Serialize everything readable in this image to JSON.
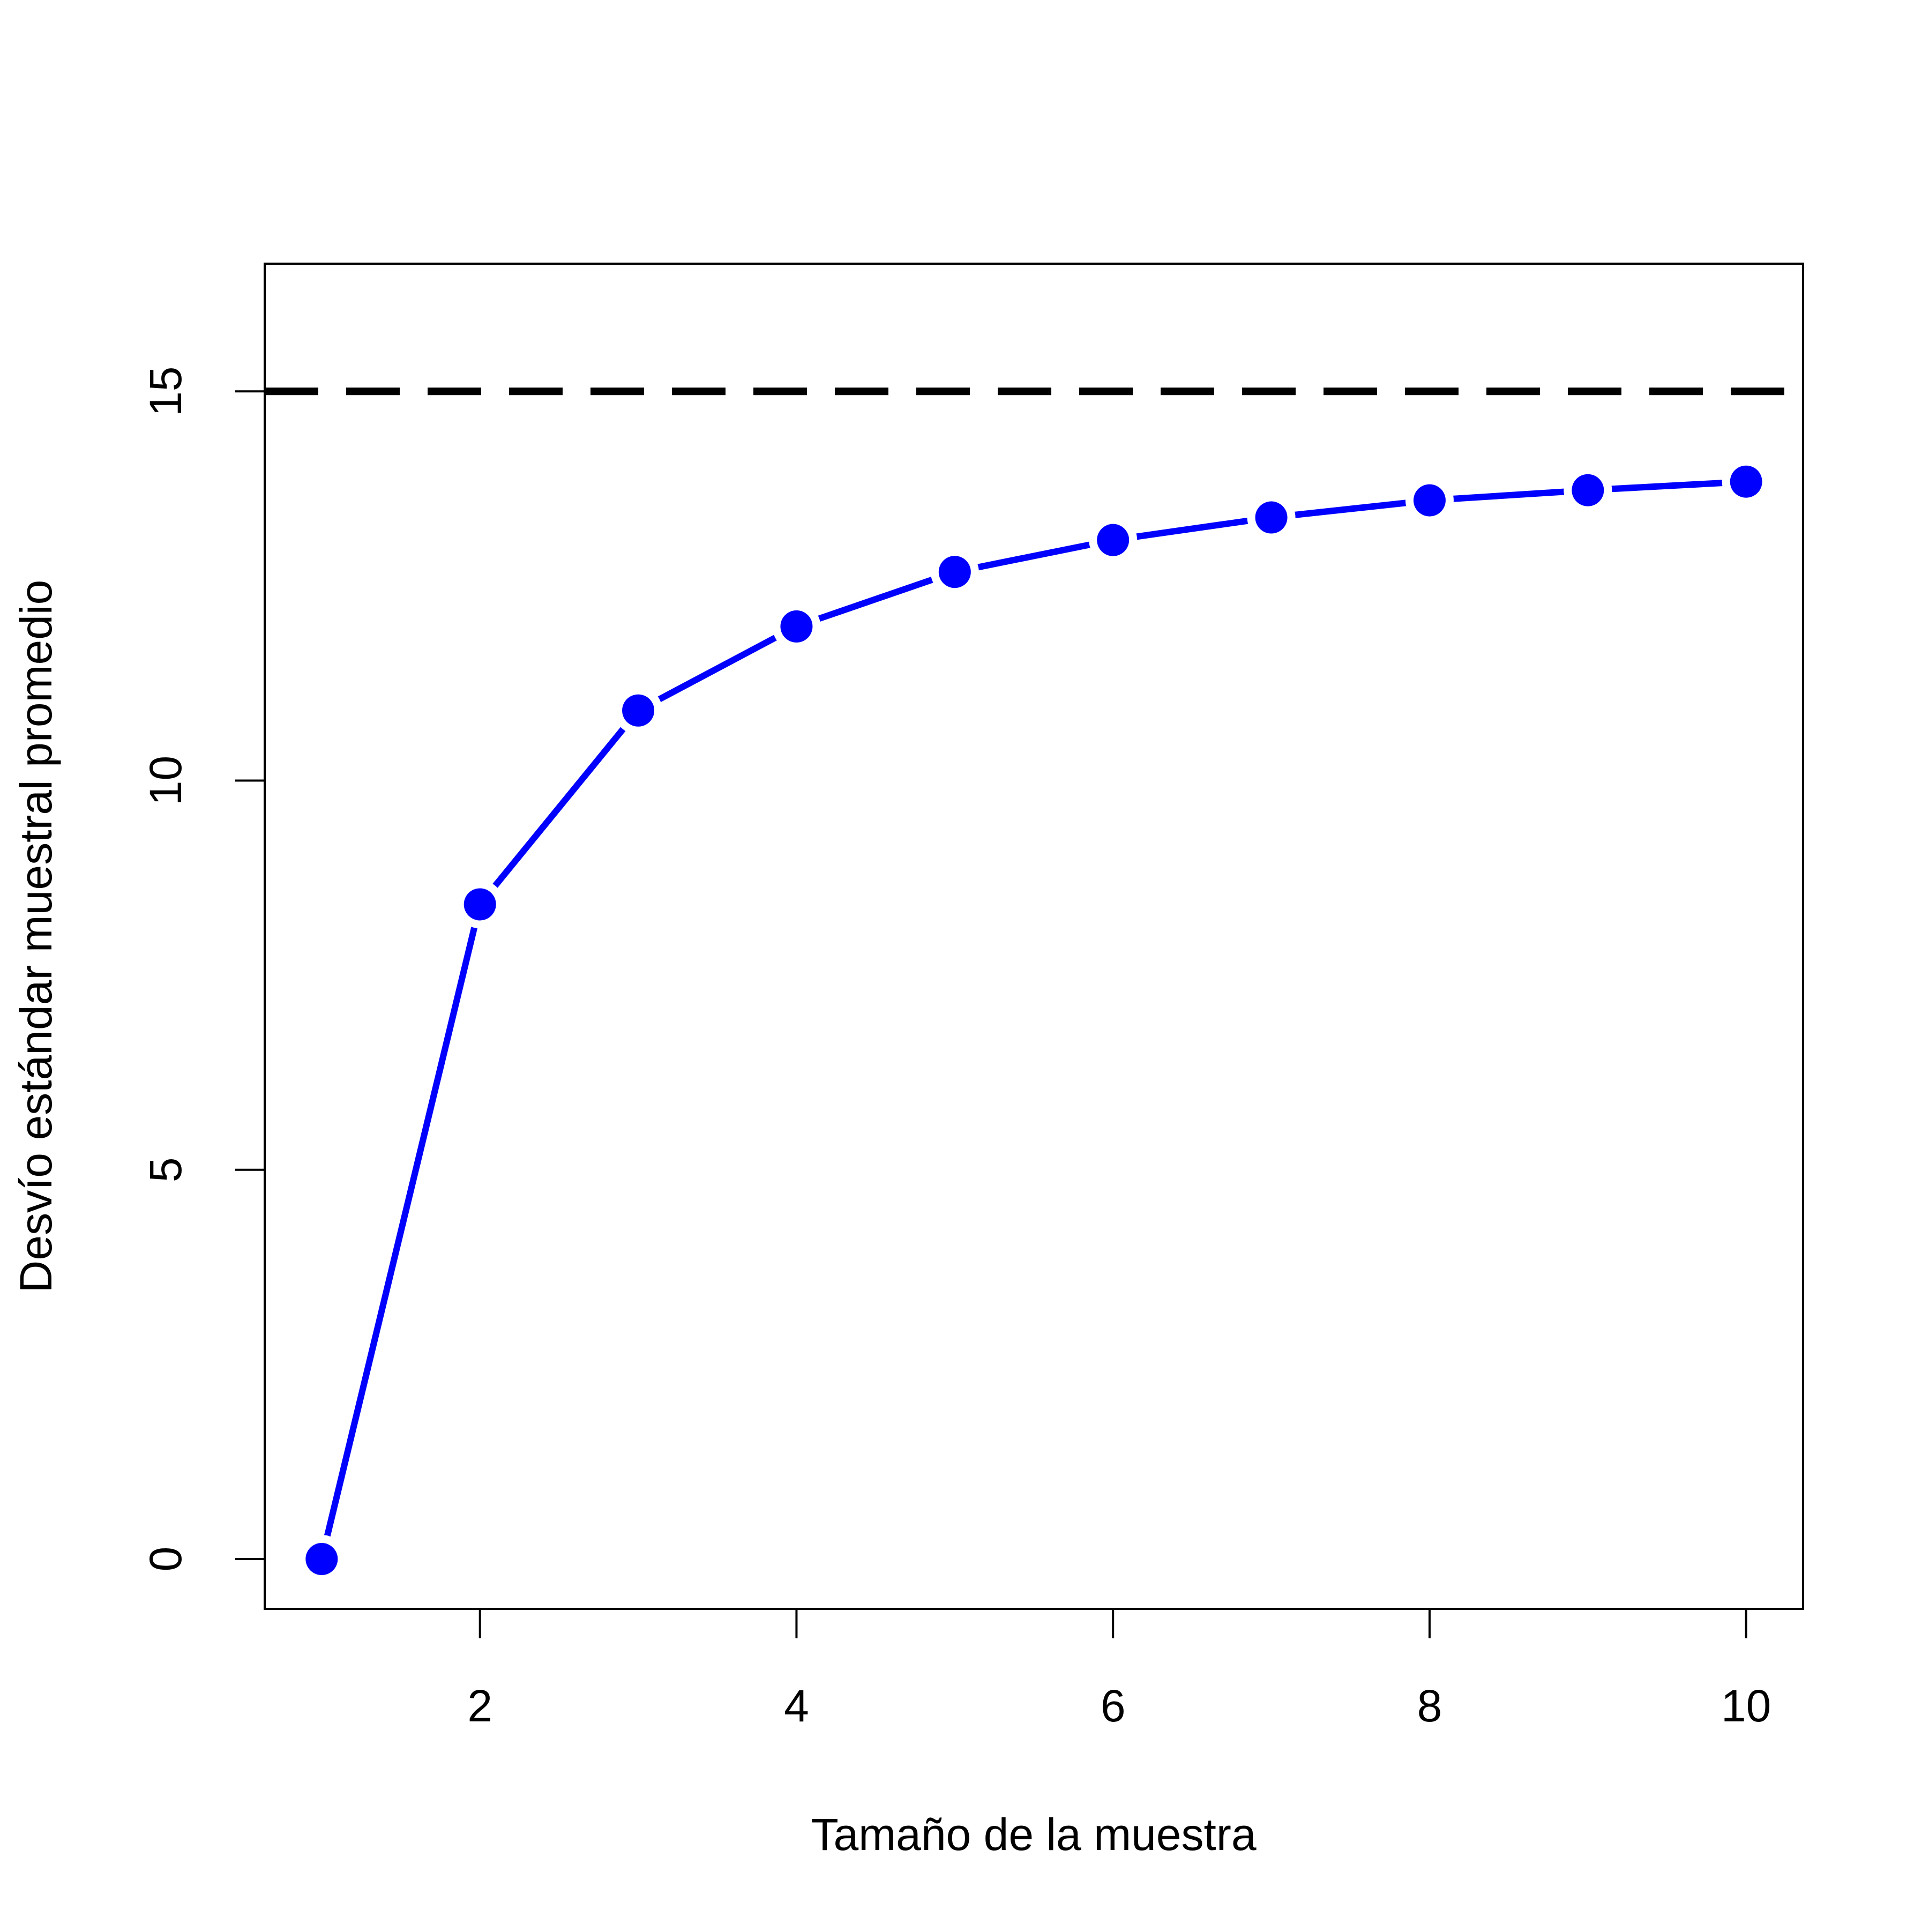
{
  "chart_data": {
    "type": "line",
    "x_label": "Tamaño de la muestra",
    "y_label": "Desvío estándar muestral promedio",
    "x": [
      1,
      2,
      3,
      4,
      5,
      6,
      7,
      8,
      9,
      10
    ],
    "values": [
      0,
      8.41,
      10.9,
      11.98,
      12.68,
      13.09,
      13.38,
      13.6,
      13.73,
      13.84
    ],
    "color": "#0000ff",
    "hline": 15,
    "hline_color": "#000000",
    "xlim": [
      0.64,
      10.36
    ],
    "xticks": [
      2,
      4,
      6,
      8,
      10
    ],
    "ylim": [
      -0.64,
      16.64
    ],
    "yticks": [
      0,
      5,
      10,
      15
    ],
    "grid": false
  }
}
